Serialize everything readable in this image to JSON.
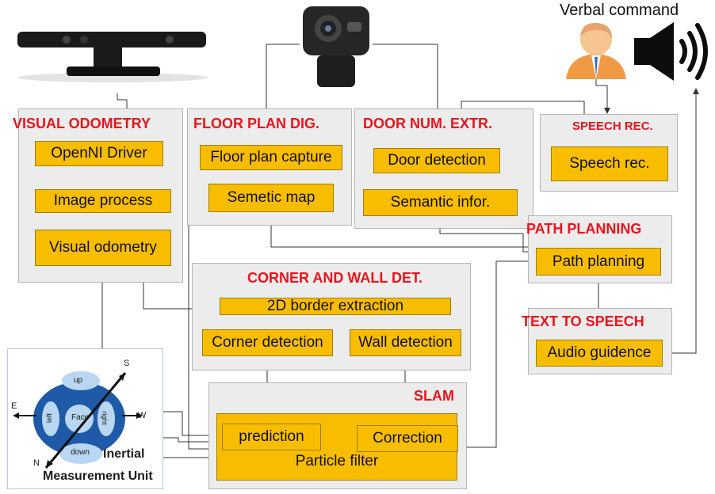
{
  "verbal_command": "Verbal command",
  "groups": {
    "visual_odometry": "VISUAL ODOMETRY",
    "floor_plan": "FLOOR PLAN DIG.",
    "door_num": "DOOR NUM. EXTR.",
    "speech_rec": "SPEECH REC.",
    "path_planning": "PATH PLANNING",
    "corner_wall": "CORNER AND WALL DET.",
    "text_to_speech": "TEXT TO SPEECH",
    "slam": "SLAM"
  },
  "blocks": {
    "openni": "OpenNI Driver",
    "image_process": "Image process",
    "visual_odometry": "Visual odometry",
    "floor_capture": "Floor plan capture",
    "semetic_map": "Semetic map",
    "door_detection": "Door detection",
    "semantic_infor": "Semantic infor.",
    "speech_rec": "Speech rec.",
    "path_planning": "Path planning",
    "border_extraction": "2D border extraction",
    "corner_detection": "Corner detection",
    "wall_detection": "Wall detection",
    "audio_guidence": "Audio guidence",
    "prediction": "prediction",
    "correction": "Correction",
    "particle_filter": "Particle filter"
  },
  "imu": {
    "label_inertial": "Inertial",
    "label_unit": "Measurement Unit",
    "up": "up",
    "down": "down",
    "left": "left",
    "right": "right",
    "face": "Face",
    "s": "S",
    "e": "E",
    "w": "W",
    "n": "N"
  },
  "colors": {
    "title_red": "#e8141c",
    "block_fill": "#f9bd00",
    "group_fill": "#ececec",
    "imu_blue": "#1f5aa8"
  }
}
